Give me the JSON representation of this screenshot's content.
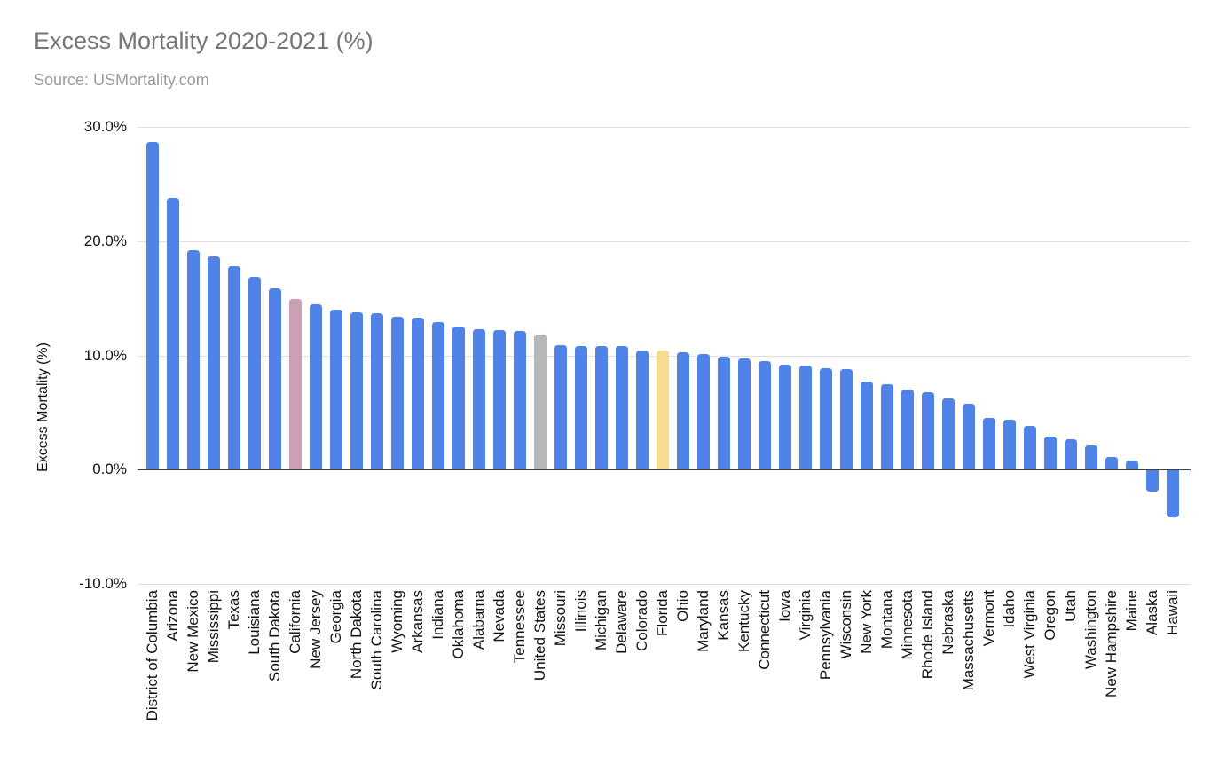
{
  "header": {
    "title": "Excess Mortality 2020-2021 (%)",
    "source": "Source: USMortality.com"
  },
  "chart_data": {
    "type": "bar",
    "title": "Excess Mortality 2020-2021 (%)",
    "subtitle": "Source: USMortality.com",
    "xlabel": "",
    "ylabel": "Excess Mortality (%)",
    "ylim": [
      -10,
      30
    ],
    "yticks": [
      30,
      20,
      10,
      0,
      -10
    ],
    "ytick_labels": [
      "30.0%",
      "20.0%",
      "10.0%",
      "0.0%",
      "-10.0%"
    ],
    "grid": true,
    "legend": false,
    "bar_color_default": "#4f83e8",
    "bar_color_overrides": {
      "California": "#c9a0b4",
      "United States": "#b7b7b7",
      "Florida": "#f6dc8e"
    },
    "categories": [
      "District of Columbia",
      "Arizona",
      "New Mexico",
      "Mississippi",
      "Texas",
      "Louisiana",
      "South Dakota",
      "California",
      "New Jersey",
      "Georgia",
      "North Dakota",
      "South Carolina",
      "Wyoming",
      "Arkansas",
      "Indiana",
      "Oklahoma",
      "Alabama",
      "Nevada",
      "Tennessee",
      "United States",
      "Missouri",
      "Illinois",
      "Michigan",
      "Delaware",
      "Colorado",
      "Florida",
      "Ohio",
      "Maryland",
      "Kansas",
      "Kentucky",
      "Connecticut",
      "Iowa",
      "Virginia",
      "Pennsylvania",
      "Wisconsin",
      "New York",
      "Montana",
      "Minnesota",
      "Rhode Island",
      "Nebraska",
      "Massachusetts",
      "Vermont",
      "Idaho",
      "West Virginia",
      "Oregon",
      "Utah",
      "Washington",
      "New Hampshire",
      "Maine",
      "Alaska",
      "Hawaii"
    ],
    "values": [
      28.7,
      23.8,
      19.2,
      18.7,
      17.8,
      16.9,
      15.9,
      14.9,
      14.5,
      14.0,
      13.8,
      13.7,
      13.4,
      13.3,
      12.9,
      12.5,
      12.3,
      12.2,
      12.1,
      11.8,
      10.9,
      10.8,
      10.8,
      10.8,
      10.4,
      10.4,
      10.3,
      10.1,
      9.9,
      9.7,
      9.5,
      9.2,
      9.1,
      8.9,
      8.8,
      7.7,
      7.5,
      7.0,
      6.8,
      6.2,
      5.8,
      4.5,
      4.4,
      3.8,
      2.9,
      2.7,
      2.1,
      1.1,
      0.8,
      -1.9,
      -4.2
    ]
  }
}
